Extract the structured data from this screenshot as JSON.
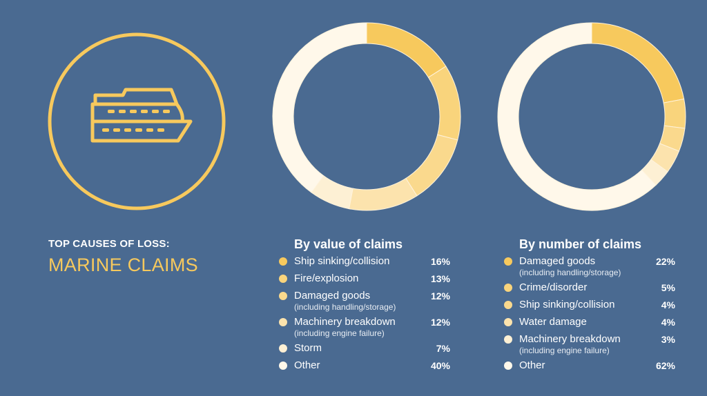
{
  "colors": {
    "background": "#4a6a91",
    "accent": "#f7c95d",
    "palette": [
      "#f7c95d",
      "#f9d47c",
      "#fad98d",
      "#fce3ad",
      "#fdf0d4",
      "#fff8ea"
    ]
  },
  "header": {
    "subtitle": "TOP CAUSES OF LOSS:",
    "title": "MARINE CLAIMS",
    "icon": "ship-icon"
  },
  "chart_data": [
    {
      "type": "pie",
      "title": "By value of claims",
      "categories": [
        {
          "label": "Ship sinking/collision",
          "note": "",
          "value": 16,
          "display": "16%"
        },
        {
          "label": "Fire/explosion",
          "note": "",
          "value": 13,
          "display": "13%"
        },
        {
          "label": "Damaged goods",
          "note": "(including handling/storage)",
          "value": 12,
          "display": "12%"
        },
        {
          "label": "Machinery breakdown",
          "note": "(including engine failure)",
          "value": 12,
          "display": "12%"
        },
        {
          "label": "Storm",
          "note": "",
          "value": 7,
          "display": "7%"
        },
        {
          "label": "Other",
          "note": "",
          "value": 40,
          "display": "40%"
        }
      ]
    },
    {
      "type": "pie",
      "title": "By number of claims",
      "categories": [
        {
          "label": "Damaged goods",
          "note": "(including handling/storage)",
          "value": 22,
          "display": "22%"
        },
        {
          "label": "Crime/disorder",
          "note": "",
          "value": 5,
          "display": "5%"
        },
        {
          "label": "Ship sinking/collision",
          "note": "",
          "value": 4,
          "display": "4%"
        },
        {
          "label": "Water damage",
          "note": "",
          "value": 4,
          "display": "4%"
        },
        {
          "label": "Machinery breakdown",
          "note": "(including engine failure)",
          "value": 3,
          "display": "3%"
        },
        {
          "label": "Other",
          "note": "",
          "value": 62,
          "display": "62%"
        }
      ]
    }
  ]
}
